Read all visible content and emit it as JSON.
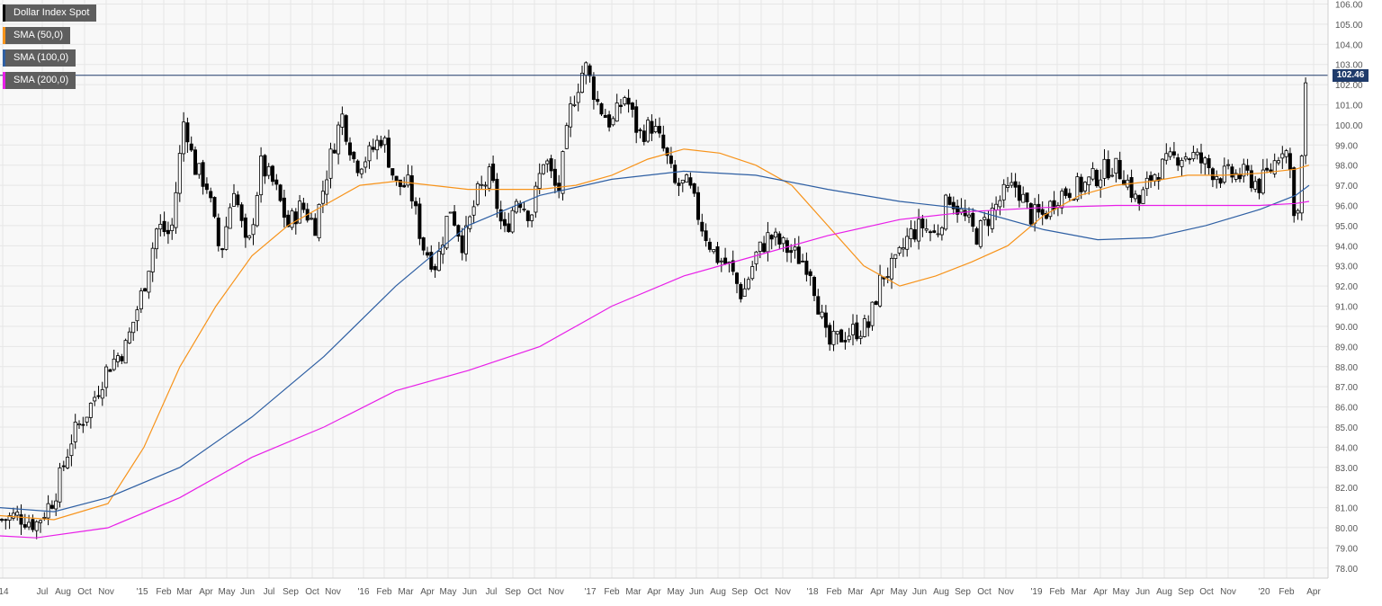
{
  "chart_data": {
    "type": "candlestick",
    "title": "",
    "ylim": [
      77.5,
      106.2
    ],
    "y_ticks": [
      "78.00",
      "79.00",
      "80.00",
      "81.00",
      "82.00",
      "83.00",
      "84.00",
      "85.00",
      "86.00",
      "87.00",
      "88.00",
      "89.00",
      "90.00",
      "91.00",
      "92.00",
      "93.00",
      "94.00",
      "95.00",
      "96.00",
      "97.00",
      "98.00",
      "99.00",
      "100.00",
      "101.00",
      "102.00",
      "103.00",
      "104.00",
      "105.00",
      "106.00"
    ],
    "x_ticks": [
      "'14",
      "Jul",
      "Aug",
      "Oct",
      "Nov",
      "'15",
      "Feb",
      "Mar",
      "Apr",
      "May",
      "Jun",
      "Jul",
      "Sep",
      "Oct",
      "Nov",
      "'16",
      "Feb",
      "Mar",
      "Apr",
      "May",
      "Jun",
      "Jul",
      "Sep",
      "Oct",
      "Nov",
      "'17",
      "Feb",
      "Mar",
      "Apr",
      "May",
      "Jun",
      "Aug",
      "Sep",
      "Oct",
      "Nov",
      "'18",
      "Feb",
      "Mar",
      "Apr",
      "May",
      "Jun",
      "Aug",
      "Sep",
      "Oct",
      "Nov",
      "'19",
      "Feb",
      "Mar",
      "Apr",
      "May",
      "Jun",
      "Aug",
      "Sep",
      "Oct",
      "Nov",
      "'20",
      "Feb",
      "Apr"
    ],
    "current_price": "102.46",
    "current_value": 102.46,
    "grid": true,
    "legend_placement": "top-left",
    "series": [
      {
        "name": "Dollar Index Spot",
        "color": "#000000",
        "close_path": [
          [
            0,
            80.4
          ],
          [
            20,
            80.6
          ],
          [
            40,
            80.2
          ],
          [
            60,
            81.5
          ],
          [
            80,
            84.5
          ],
          [
            100,
            86.0
          ],
          [
            120,
            88.0
          ],
          [
            140,
            89.0
          ],
          [
            160,
            92.0
          ],
          [
            175,
            95.0
          ],
          [
            190,
            94.5
          ],
          [
            205,
            100.5
          ],
          [
            215,
            98.0
          ],
          [
            230,
            97.0
          ],
          [
            245,
            93.5
          ],
          [
            260,
            97.0
          ],
          [
            275,
            93.5
          ],
          [
            290,
            98.0
          ],
          [
            305,
            97.0
          ],
          [
            320,
            95.0
          ],
          [
            335,
            96.0
          ],
          [
            350,
            95.0
          ],
          [
            365,
            98.0
          ],
          [
            380,
            100.5
          ],
          [
            395,
            98.0
          ],
          [
            410,
            98.5
          ],
          [
            425,
            99.5
          ],
          [
            440,
            97.0
          ],
          [
            455,
            97.0
          ],
          [
            470,
            94.0
          ],
          [
            485,
            93.0
          ],
          [
            500,
            96.0
          ],
          [
            515,
            94.0
          ],
          [
            530,
            96.5
          ],
          [
            545,
            97.5
          ],
          [
            560,
            94.5
          ],
          [
            575,
            96.5
          ],
          [
            590,
            95.5
          ],
          [
            605,
            98.5
          ],
          [
            620,
            96.5
          ],
          [
            635,
            101.0
          ],
          [
            650,
            103.0
          ],
          [
            665,
            101.0
          ],
          [
            680,
            100.0
          ],
          [
            695,
            101.5
          ],
          [
            710,
            99.5
          ],
          [
            725,
            100.0
          ],
          [
            740,
            98.5
          ],
          [
            750,
            97.0
          ],
          [
            765,
            97.0
          ],
          [
            780,
            95.0
          ],
          [
            795,
            93.5
          ],
          [
            810,
            93.0
          ],
          [
            825,
            91.5
          ],
          [
            840,
            93.5
          ],
          [
            855,
            94.5
          ],
          [
            870,
            94.0
          ],
          [
            885,
            93.5
          ],
          [
            900,
            93.0
          ],
          [
            910,
            91.0
          ],
          [
            920,
            89.0
          ],
          [
            935,
            89.5
          ],
          [
            950,
            89.8
          ],
          [
            965,
            90.0
          ],
          [
            980,
            92.5
          ],
          [
            995,
            93.0
          ],
          [
            1010,
            94.5
          ],
          [
            1025,
            95.0
          ],
          [
            1040,
            94.5
          ],
          [
            1055,
            96.5
          ],
          [
            1070,
            95.5
          ],
          [
            1085,
            94.5
          ],
          [
            1100,
            95.5
          ],
          [
            1115,
            96.5
          ],
          [
            1130,
            97.0
          ],
          [
            1145,
            95.5
          ],
          [
            1160,
            95.5
          ],
          [
            1175,
            96.5
          ],
          [
            1190,
            96.8
          ],
          [
            1205,
            97.0
          ],
          [
            1220,
            97.5
          ],
          [
            1235,
            98.0
          ],
          [
            1250,
            97.5
          ],
          [
            1265,
            96.0
          ],
          [
            1280,
            97.5
          ],
          [
            1295,
            98.0
          ],
          [
            1310,
            98.5
          ],
          [
            1325,
            98.5
          ],
          [
            1340,
            98.0
          ],
          [
            1355,
            97.5
          ],
          [
            1370,
            97.5
          ],
          [
            1385,
            97.5
          ],
          [
            1400,
            97.0
          ],
          [
            1415,
            98.0
          ],
          [
            1425,
            99.0
          ],
          [
            1432,
            98.5
          ],
          [
            1438,
            96.0
          ],
          [
            1444,
            95.5
          ],
          [
            1450,
            101.5
          ],
          [
            1455,
            102.46
          ]
        ]
      },
      {
        "name": "SMA (50,0)",
        "color": "#f7931a",
        "path": [
          [
            0,
            80.6
          ],
          [
            60,
            80.4
          ],
          [
            120,
            81.2
          ],
          [
            160,
            84.0
          ],
          [
            200,
            88.0
          ],
          [
            240,
            91.0
          ],
          [
            280,
            93.5
          ],
          [
            320,
            95.0
          ],
          [
            360,
            96.0
          ],
          [
            400,
            97.0
          ],
          [
            440,
            97.2
          ],
          [
            480,
            97.0
          ],
          [
            520,
            96.8
          ],
          [
            560,
            96.8
          ],
          [
            600,
            96.8
          ],
          [
            640,
            97.0
          ],
          [
            680,
            97.5
          ],
          [
            720,
            98.3
          ],
          [
            760,
            98.8
          ],
          [
            800,
            98.6
          ],
          [
            840,
            98.0
          ],
          [
            880,
            97.0
          ],
          [
            920,
            95.0
          ],
          [
            960,
            93.0
          ],
          [
            1000,
            92.0
          ],
          [
            1040,
            92.5
          ],
          [
            1080,
            93.2
          ],
          [
            1120,
            94.0
          ],
          [
            1160,
            95.5
          ],
          [
            1200,
            96.5
          ],
          [
            1240,
            97.0
          ],
          [
            1280,
            97.2
          ],
          [
            1320,
            97.5
          ],
          [
            1360,
            97.5
          ],
          [
            1400,
            97.6
          ],
          [
            1440,
            97.8
          ],
          [
            1455,
            98.0
          ]
        ]
      },
      {
        "name": "SMA (100,0)",
        "color": "#2e5fa3",
        "path": [
          [
            0,
            81.0
          ],
          [
            60,
            80.8
          ],
          [
            120,
            81.5
          ],
          [
            200,
            83.0
          ],
          [
            280,
            85.5
          ],
          [
            360,
            88.5
          ],
          [
            440,
            92.0
          ],
          [
            520,
            95.0
          ],
          [
            600,
            96.5
          ],
          [
            680,
            97.3
          ],
          [
            760,
            97.7
          ],
          [
            840,
            97.5
          ],
          [
            920,
            96.8
          ],
          [
            1000,
            96.2
          ],
          [
            1080,
            95.8
          ],
          [
            1160,
            94.8
          ],
          [
            1220,
            94.3
          ],
          [
            1280,
            94.4
          ],
          [
            1340,
            95.0
          ],
          [
            1400,
            95.8
          ],
          [
            1440,
            96.5
          ],
          [
            1455,
            97.0
          ]
        ]
      },
      {
        "name": "SMA (200,0)",
        "color": "#e81ee8",
        "path": [
          [
            0,
            79.6
          ],
          [
            40,
            79.5
          ],
          [
            120,
            80.0
          ],
          [
            200,
            81.5
          ],
          [
            280,
            83.5
          ],
          [
            360,
            85.0
          ],
          [
            440,
            86.8
          ],
          [
            520,
            87.8
          ],
          [
            600,
            89.0
          ],
          [
            680,
            91.0
          ],
          [
            760,
            92.5
          ],
          [
            840,
            93.5
          ],
          [
            920,
            94.5
          ],
          [
            1000,
            95.3
          ],
          [
            1080,
            95.7
          ],
          [
            1160,
            95.9
          ],
          [
            1240,
            96.0
          ],
          [
            1320,
            96.0
          ],
          [
            1400,
            96.0
          ],
          [
            1440,
            96.1
          ],
          [
            1455,
            96.2
          ]
        ]
      }
    ]
  }
}
